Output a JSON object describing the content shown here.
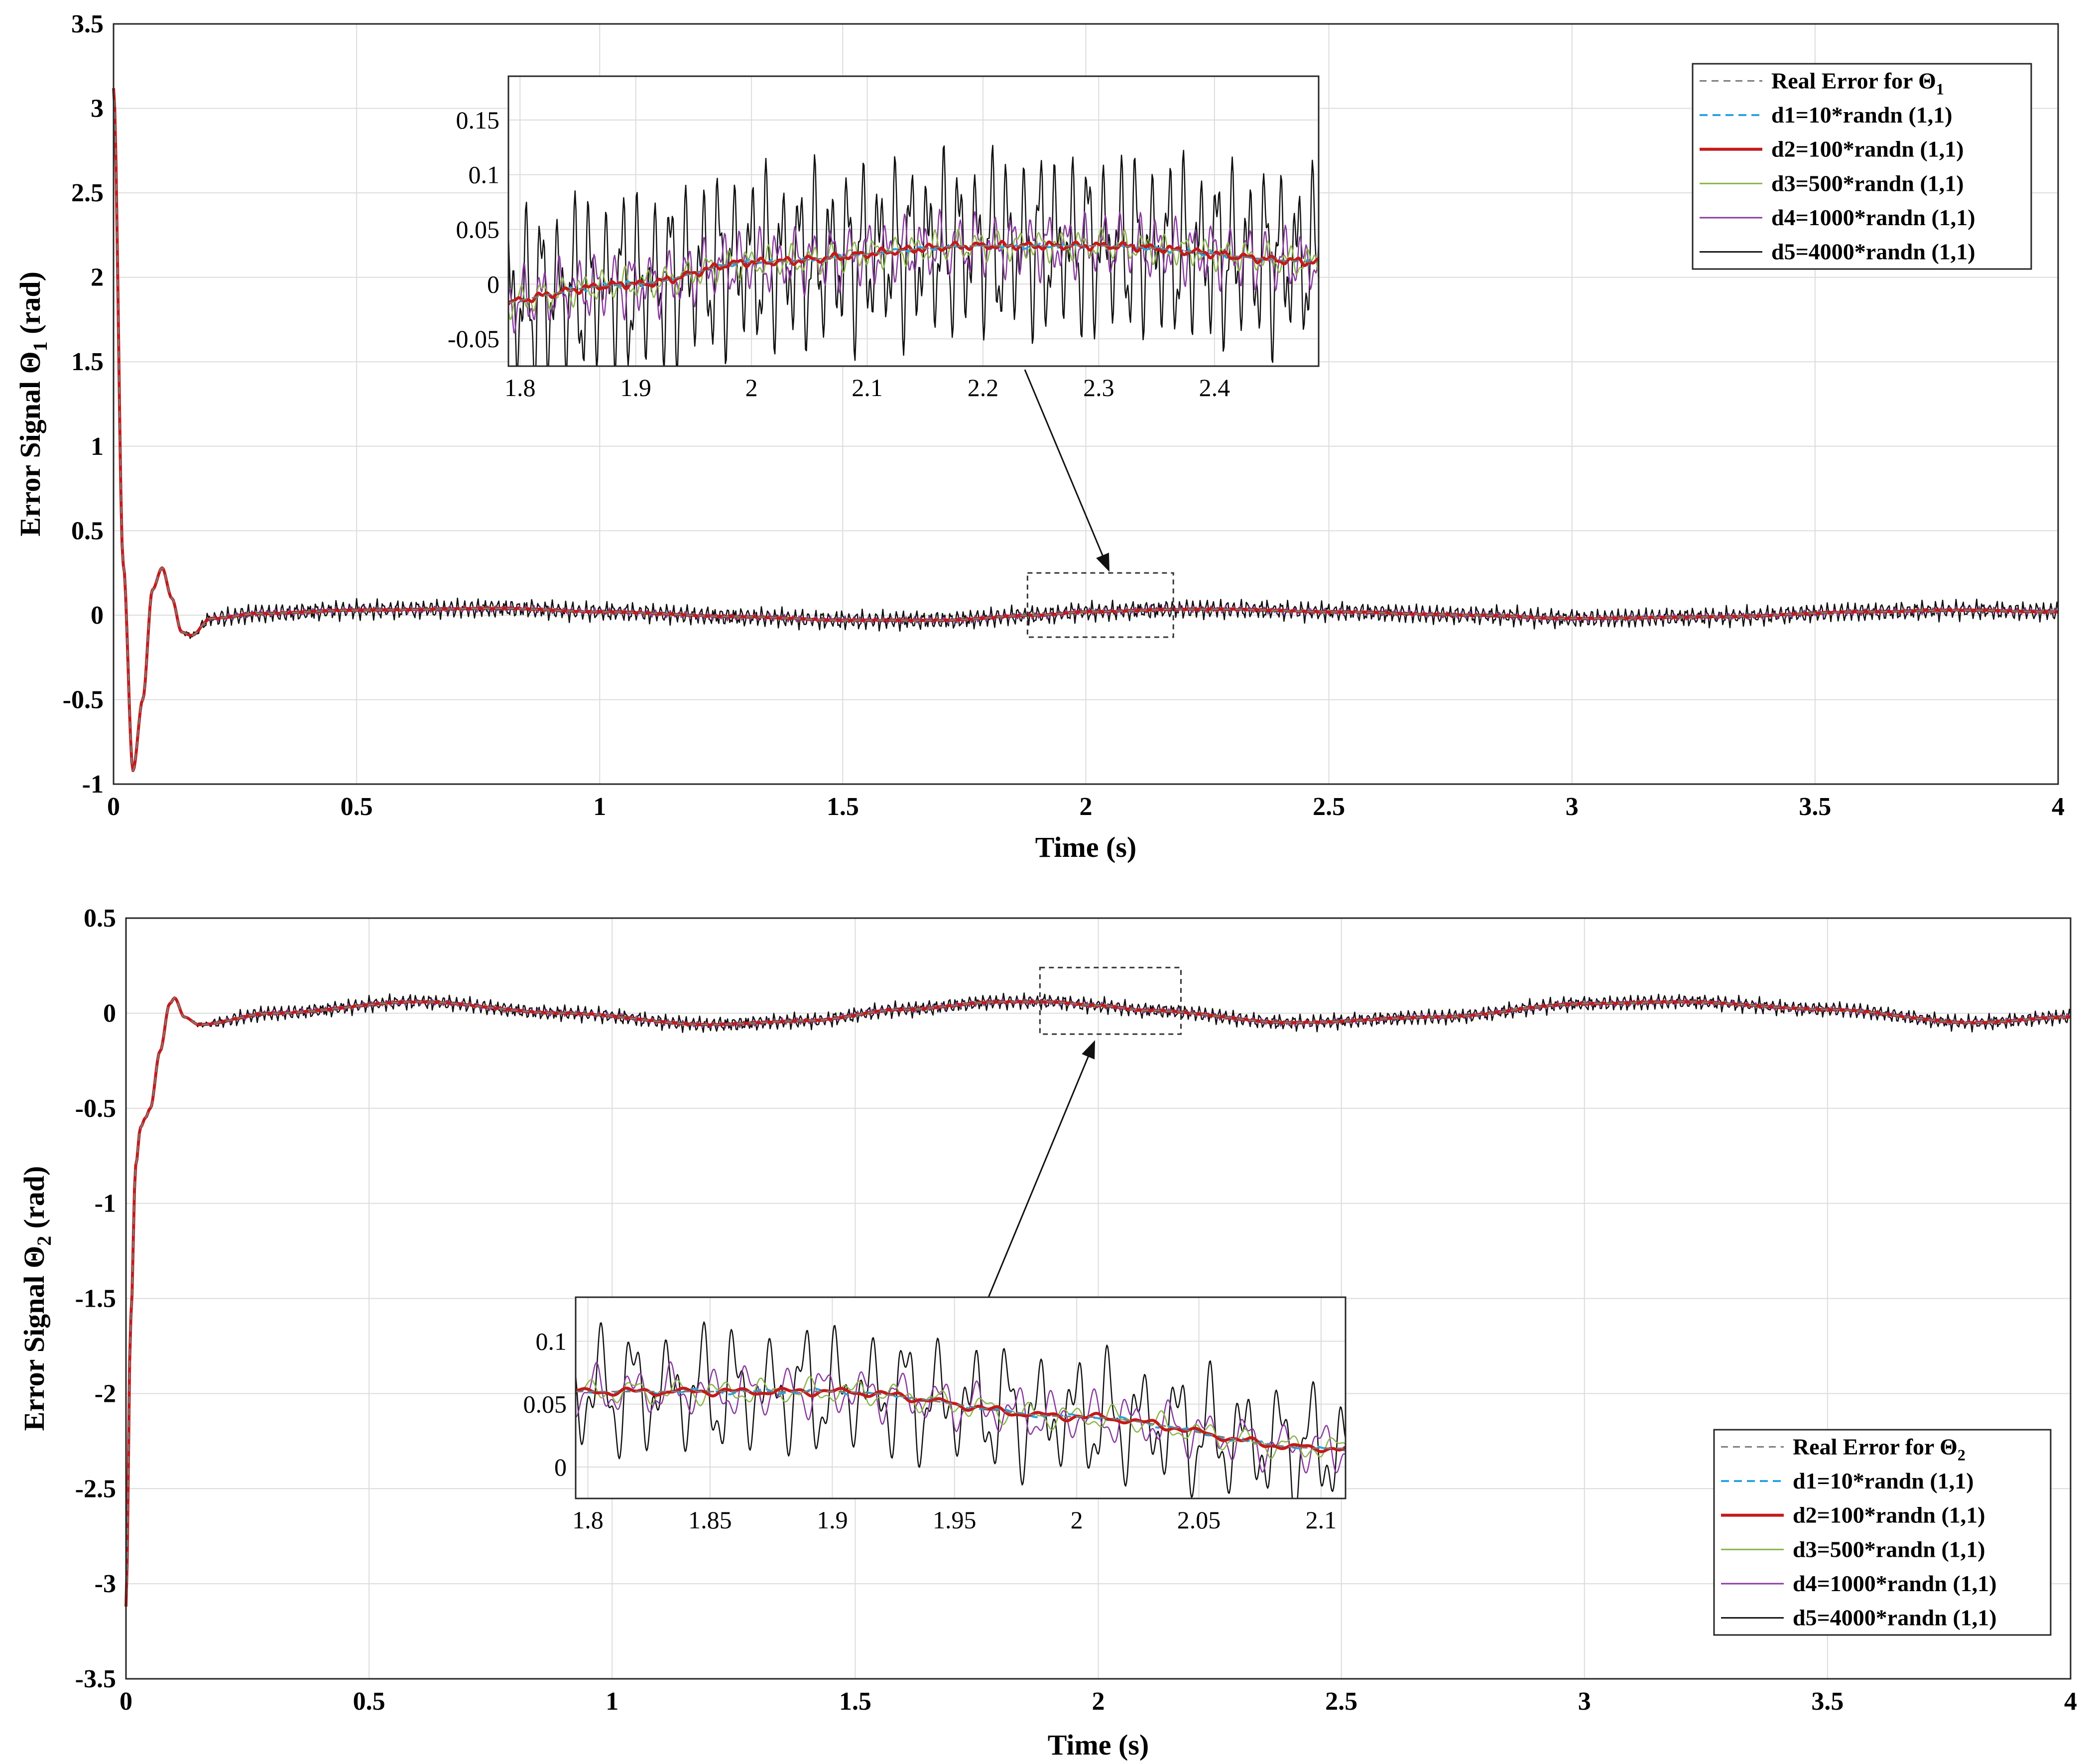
{
  "colors": {
    "real": "#7a7a7a",
    "d1": "#2aa3df",
    "d2": "#c41a1a",
    "d3": "#8ab54a",
    "d4": "#8a3a9e",
    "d5": "#111111"
  },
  "chart_data": [
    {
      "id": "theta1",
      "type": "line",
      "title": "",
      "xlabel": "Time (s)",
      "ylabel_prefix": "Error Signal ",
      "ylabel_symbol": "Θ",
      "ylabel_sub": "1",
      "ylabel_suffix": " (rad)",
      "xlim": [
        0,
        4
      ],
      "ylim": [
        -1,
        3.5
      ],
      "xticks": [
        "0",
        "0.5",
        "1",
        "1.5",
        "2",
        "2.5",
        "3",
        "3.5",
        "4"
      ],
      "yticks": [
        "-1",
        "-0.5",
        "0",
        "0.5",
        "1",
        "1.5",
        "2",
        "2.5",
        "3",
        "3.5"
      ],
      "grid": true,
      "legend_position": "top-right",
      "legend": [
        {
          "key": "real",
          "label_main": "Real Error for Θ",
          "label_sub": "1"
        },
        {
          "key": "d1",
          "label_main": "d1=10*randn (1,1)"
        },
        {
          "key": "d2",
          "label_main": "d2=100*randn (1,1)"
        },
        {
          "key": "d3",
          "label_main": "d3=500*randn (1,1)"
        },
        {
          "key": "d4",
          "label_main": "d4=1000*randn (1,1)"
        },
        {
          "key": "d5",
          "label_main": "d5=4000*randn (1,1)"
        }
      ],
      "base_series": {
        "description": "Smooth error trajectory shared by all disturbance levels",
        "x": [
          0,
          0.02,
          0.04,
          0.06,
          0.08,
          0.1,
          0.12,
          0.14,
          0.16,
          0.2,
          0.3,
          0.5,
          0.8,
          1.0,
          1.3,
          1.5,
          1.7,
          1.9,
          2.0,
          2.2,
          2.3,
          2.5,
          2.8,
          3.0,
          3.3,
          3.6,
          3.8,
          4.0
        ],
        "y": [
          3.12,
          0.3,
          -0.92,
          -0.5,
          0.15,
          0.28,
          0.1,
          -0.1,
          -0.12,
          -0.02,
          0.01,
          0.03,
          0.04,
          0.02,
          -0.01,
          -0.03,
          -0.03,
          0.0,
          0.02,
          0.035,
          0.035,
          0.02,
          0.0,
          -0.02,
          -0.01,
          0.02,
          0.03,
          0.02
        ]
      },
      "noise_amplitude": {
        "real": 0,
        "d1": 0.002,
        "d2": 0.003,
        "d3": 0.012,
        "d4": 0.025,
        "d5": 0.07
      },
      "zoom_region": {
        "xlim": [
          1.88,
          2.18
        ],
        "ylim": [
          -0.13,
          0.25
        ]
      },
      "inset": {
        "xlim": [
          1.79,
          2.49
        ],
        "ylim": [
          -0.075,
          0.19
        ],
        "xticks": [
          "1.8",
          "1.9",
          "2",
          "2.1",
          "2.2",
          "2.3",
          "2.4"
        ],
        "yticks": [
          "-0.05",
          "0",
          "0.05",
          "0.1",
          "0.15"
        ]
      }
    },
    {
      "id": "theta2",
      "type": "line",
      "title": "",
      "xlabel": "Time (s)",
      "ylabel_prefix": "Error Signal ",
      "ylabel_symbol": "Θ",
      "ylabel_sub": "2",
      "ylabel_suffix": " (rad)",
      "xlim": [
        0,
        4
      ],
      "ylim": [
        -3.5,
        0.5
      ],
      "xticks": [
        "0",
        "0.5",
        "1",
        "1.5",
        "2",
        "2.5",
        "3",
        "3.5",
        "4"
      ],
      "yticks": [
        "-3.5",
        "-3",
        "-2.5",
        "-2",
        "-1.5",
        "-1",
        "-0.5",
        "0",
        "0.5"
      ],
      "grid": true,
      "legend_position": "bottom-right",
      "legend": [
        {
          "key": "real",
          "label_main": "Real Error for Θ",
          "label_sub": "2"
        },
        {
          "key": "d1",
          "label_main": "d1=10*randn (1,1)"
        },
        {
          "key": "d2",
          "label_main": "d2=100*randn (1,1)"
        },
        {
          "key": "d3",
          "label_main": "d3=500*randn (1,1)"
        },
        {
          "key": "d4",
          "label_main": "d4=1000*randn (1,1)"
        },
        {
          "key": "d5",
          "label_main": "d5=4000*randn (1,1)"
        }
      ],
      "base_series": {
        "description": "Smooth error trajectory shared by all disturbance levels",
        "x": [
          0,
          0.01,
          0.02,
          0.03,
          0.04,
          0.05,
          0.07,
          0.09,
          0.1,
          0.12,
          0.15,
          0.3,
          0.6,
          0.9,
          1.2,
          1.4,
          1.6,
          1.8,
          1.9,
          2.0,
          2.1,
          2.4,
          2.7,
          3.0,
          3.2,
          3.5,
          3.8,
          4.0
        ],
        "y": [
          -3.12,
          -1.6,
          -0.8,
          -0.6,
          -0.55,
          -0.5,
          -0.2,
          0.05,
          0.08,
          -0.02,
          -0.06,
          0.0,
          0.06,
          0.0,
          -0.06,
          -0.04,
          0.02,
          0.06,
          0.06,
          0.04,
          0.015,
          -0.05,
          -0.02,
          0.05,
          0.06,
          0.02,
          -0.05,
          -0.02
        ]
      },
      "noise_amplitude": {
        "real": 0,
        "d1": 0.002,
        "d2": 0.003,
        "d3": 0.01,
        "d4": 0.02,
        "d5": 0.05
      },
      "zoom_region": {
        "xlim": [
          1.88,
          2.17
        ],
        "ylim": [
          -0.11,
          0.24
        ]
      },
      "inset": {
        "xlim": [
          1.795,
          2.11
        ],
        "ylim": [
          -0.025,
          0.135
        ],
        "xticks": [
          "1.8",
          "1.85",
          "1.9",
          "1.95",
          "2",
          "2.05",
          "2.1"
        ],
        "yticks": [
          "0",
          "0.05",
          "0.1"
        ]
      }
    }
  ]
}
